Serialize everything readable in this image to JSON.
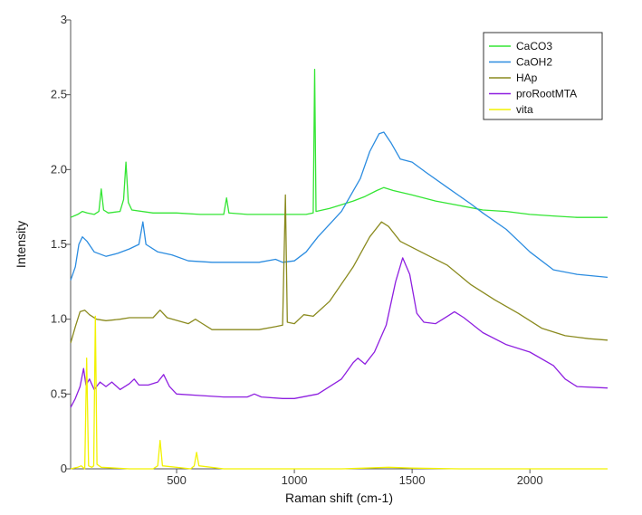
{
  "chart_data": {
    "type": "line",
    "title": "",
    "xlabel": "Raman shift (cm-1)",
    "ylabel": "Intensity",
    "xlim": [
      50,
      2330
    ],
    "ylim": [
      0,
      3
    ],
    "xticks": [
      500,
      1000,
      1500,
      2000
    ],
    "yticks": [
      0,
      0.5,
      1.0,
      1.5,
      2.0,
      2.5,
      3
    ],
    "ytick_labels": [
      "0",
      "0.5",
      "1.0",
      "1.5",
      "2.0",
      "2.5",
      "3"
    ],
    "grid": false,
    "legend_position": "top-right",
    "series": [
      {
        "name": "CaCO3",
        "color": "#33e533",
        "points": [
          [
            50,
            1.68
          ],
          [
            80,
            1.7
          ],
          [
            100,
            1.72
          ],
          [
            120,
            1.71
          ],
          [
            150,
            1.7
          ],
          [
            170,
            1.72
          ],
          [
            180,
            1.87
          ],
          [
            190,
            1.73
          ],
          [
            210,
            1.71
          ],
          [
            260,
            1.72
          ],
          [
            275,
            1.8
          ],
          [
            285,
            2.05
          ],
          [
            295,
            1.78
          ],
          [
            310,
            1.73
          ],
          [
            400,
            1.71
          ],
          [
            500,
            1.71
          ],
          [
            600,
            1.7
          ],
          [
            700,
            1.7
          ],
          [
            712,
            1.81
          ],
          [
            722,
            1.71
          ],
          [
            800,
            1.7
          ],
          [
            900,
            1.7
          ],
          [
            1000,
            1.7
          ],
          [
            1050,
            1.7
          ],
          [
            1080,
            1.71
          ],
          [
            1086,
            2.67
          ],
          [
            1092,
            1.72
          ],
          [
            1150,
            1.74
          ],
          [
            1250,
            1.79
          ],
          [
            1300,
            1.82
          ],
          [
            1350,
            1.86
          ],
          [
            1380,
            1.88
          ],
          [
            1420,
            1.86
          ],
          [
            1500,
            1.83
          ],
          [
            1600,
            1.79
          ],
          [
            1700,
            1.76
          ],
          [
            1800,
            1.73
          ],
          [
            1900,
            1.72
          ],
          [
            2000,
            1.7
          ],
          [
            2100,
            1.69
          ],
          [
            2200,
            1.68
          ],
          [
            2330,
            1.68
          ]
        ]
      },
      {
        "name": "CaOH2",
        "color": "#2b8ce0",
        "points": [
          [
            50,
            1.26
          ],
          [
            70,
            1.35
          ],
          [
            85,
            1.5
          ],
          [
            100,
            1.55
          ],
          [
            120,
            1.52
          ],
          [
            150,
            1.45
          ],
          [
            200,
            1.42
          ],
          [
            250,
            1.44
          ],
          [
            300,
            1.47
          ],
          [
            340,
            1.5
          ],
          [
            357,
            1.65
          ],
          [
            370,
            1.5
          ],
          [
            420,
            1.45
          ],
          [
            480,
            1.43
          ],
          [
            550,
            1.39
          ],
          [
            650,
            1.38
          ],
          [
            750,
            1.38
          ],
          [
            850,
            1.38
          ],
          [
            920,
            1.4
          ],
          [
            950,
            1.38
          ],
          [
            1000,
            1.39
          ],
          [
            1050,
            1.45
          ],
          [
            1100,
            1.55
          ],
          [
            1200,
            1.72
          ],
          [
            1280,
            1.94
          ],
          [
            1320,
            2.12
          ],
          [
            1360,
            2.24
          ],
          [
            1380,
            2.25
          ],
          [
            1410,
            2.18
          ],
          [
            1450,
            2.07
          ],
          [
            1500,
            2.05
          ],
          [
            1560,
            1.98
          ],
          [
            1650,
            1.88
          ],
          [
            1750,
            1.77
          ],
          [
            1800,
            1.71
          ],
          [
            1900,
            1.6
          ],
          [
            2000,
            1.45
          ],
          [
            2100,
            1.33
          ],
          [
            2200,
            1.3
          ],
          [
            2330,
            1.28
          ]
        ]
      },
      {
        "name": "HAp",
        "color": "#8a8a1e",
        "points": [
          [
            50,
            0.84
          ],
          [
            70,
            0.95
          ],
          [
            90,
            1.05
          ],
          [
            110,
            1.06
          ],
          [
            130,
            1.03
          ],
          [
            160,
            1.0
          ],
          [
            200,
            0.99
          ],
          [
            260,
            1.0
          ],
          [
            300,
            1.01
          ],
          [
            400,
            1.01
          ],
          [
            430,
            1.06
          ],
          [
            460,
            1.01
          ],
          [
            550,
            0.97
          ],
          [
            580,
            1.0
          ],
          [
            600,
            0.98
          ],
          [
            650,
            0.93
          ],
          [
            750,
            0.93
          ],
          [
            850,
            0.93
          ],
          [
            920,
            0.95
          ],
          [
            950,
            0.96
          ],
          [
            962,
            1.83
          ],
          [
            970,
            0.98
          ],
          [
            1000,
            0.97
          ],
          [
            1040,
            1.03
          ],
          [
            1080,
            1.02
          ],
          [
            1150,
            1.12
          ],
          [
            1250,
            1.35
          ],
          [
            1320,
            1.55
          ],
          [
            1370,
            1.65
          ],
          [
            1400,
            1.62
          ],
          [
            1450,
            1.52
          ],
          [
            1550,
            1.44
          ],
          [
            1650,
            1.36
          ],
          [
            1750,
            1.23
          ],
          [
            1850,
            1.13
          ],
          [
            1950,
            1.04
          ],
          [
            2050,
            0.94
          ],
          [
            2150,
            0.89
          ],
          [
            2250,
            0.87
          ],
          [
            2330,
            0.86
          ]
        ]
      },
      {
        "name": "proRootMTA",
        "color": "#8e1fe0",
        "points": [
          [
            50,
            0.41
          ],
          [
            70,
            0.47
          ],
          [
            90,
            0.55
          ],
          [
            105,
            0.67
          ],
          [
            115,
            0.56
          ],
          [
            130,
            0.6
          ],
          [
            150,
            0.53
          ],
          [
            175,
            0.58
          ],
          [
            200,
            0.55
          ],
          [
            225,
            0.58
          ],
          [
            260,
            0.53
          ],
          [
            300,
            0.57
          ],
          [
            320,
            0.6
          ],
          [
            340,
            0.56
          ],
          [
            380,
            0.56
          ],
          [
            420,
            0.58
          ],
          [
            445,
            0.63
          ],
          [
            470,
            0.55
          ],
          [
            500,
            0.5
          ],
          [
            600,
            0.49
          ],
          [
            700,
            0.48
          ],
          [
            800,
            0.48
          ],
          [
            830,
            0.5
          ],
          [
            860,
            0.48
          ],
          [
            950,
            0.47
          ],
          [
            1000,
            0.47
          ],
          [
            1100,
            0.5
          ],
          [
            1200,
            0.6
          ],
          [
            1250,
            0.71
          ],
          [
            1270,
            0.74
          ],
          [
            1300,
            0.7
          ],
          [
            1340,
            0.78
          ],
          [
            1390,
            0.96
          ],
          [
            1430,
            1.25
          ],
          [
            1460,
            1.41
          ],
          [
            1490,
            1.3
          ],
          [
            1520,
            1.04
          ],
          [
            1550,
            0.98
          ],
          [
            1600,
            0.97
          ],
          [
            1650,
            1.02
          ],
          [
            1680,
            1.05
          ],
          [
            1720,
            1.01
          ],
          [
            1800,
            0.91
          ],
          [
            1900,
            0.83
          ],
          [
            2000,
            0.78
          ],
          [
            2100,
            0.69
          ],
          [
            2150,
            0.6
          ],
          [
            2200,
            0.55
          ],
          [
            2330,
            0.54
          ]
        ]
      },
      {
        "name": "vita",
        "color": "#f2f200",
        "points": [
          [
            50,
            0.0
          ],
          [
            80,
            0.01
          ],
          [
            95,
            0.02
          ],
          [
            110,
            0.0
          ],
          [
            118,
            0.74
          ],
          [
            126,
            0.02
          ],
          [
            140,
            0.01
          ],
          [
            148,
            0.02
          ],
          [
            155,
            1.02
          ],
          [
            162,
            0.03
          ],
          [
            180,
            0.01
          ],
          [
            300,
            0.0
          ],
          [
            400,
            0.0
          ],
          [
            420,
            0.02
          ],
          [
            430,
            0.19
          ],
          [
            440,
            0.02
          ],
          [
            560,
            0.0
          ],
          [
            575,
            0.02
          ],
          [
            585,
            0.11
          ],
          [
            595,
            0.02
          ],
          [
            700,
            0.0
          ],
          [
            1000,
            0.0
          ],
          [
            1200,
            0.0
          ],
          [
            1300,
            0.005
          ],
          [
            1400,
            0.01
          ],
          [
            1500,
            0.005
          ],
          [
            1700,
            0.0
          ],
          [
            2330,
            0.0
          ]
        ]
      }
    ]
  }
}
